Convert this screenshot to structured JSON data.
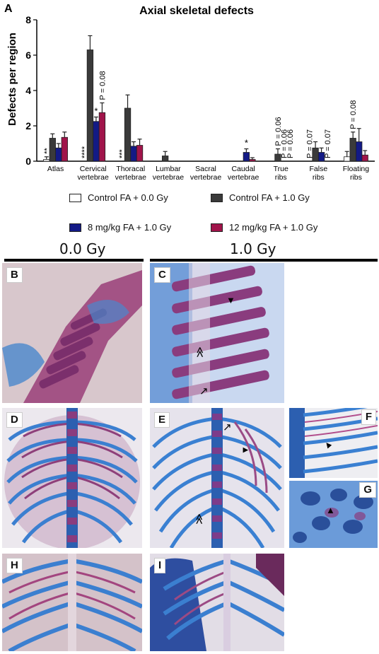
{
  "panel_a_label": "A",
  "chart_data": {
    "type": "bar",
    "title": "Axial skeletal defects",
    "ylabel": "Defects per region",
    "ylim": [
      0,
      8
    ],
    "yticks": [
      0,
      2,
      4,
      6,
      8
    ],
    "categories": [
      "Atlas",
      "Cervical\nvertebrae",
      "Thoracal\nvertebrae",
      "Lumbar\nvertebrae",
      "Sacral\nvertebrae",
      "Caudal\nvertebrae",
      "True\nribs",
      "False\nribs",
      "Floating\nribs"
    ],
    "series": [
      {
        "name": "Control FA + 0.0 Gy",
        "color": "#ffffff",
        "values": [
          0.1,
          0,
          0,
          0,
          0,
          0,
          0,
          0,
          0.25
        ],
        "errors": [
          0.15,
          0,
          0,
          0,
          0,
          0,
          0,
          0,
          0.3
        ]
      },
      {
        "name": "Control FA + 1.0 Gy",
        "color": "#3a3a3a",
        "values": [
          1.3,
          6.3,
          3.0,
          0.3,
          0,
          0,
          0.4,
          0.75,
          1.3
        ],
        "errors": [
          0.25,
          0.8,
          0.75,
          0.25,
          0,
          0,
          0.3,
          0.35,
          0.35
        ]
      },
      {
        "name": "8 mg/kg FA + 1.0 Gy",
        "color": "#131a86",
        "values": [
          0.75,
          2.25,
          0.85,
          0,
          0,
          0.5,
          0,
          0.5,
          1.1
        ],
        "errors": [
          0.25,
          0.25,
          0.25,
          0,
          0,
          0.2,
          0,
          0.25,
          0.75
        ]
      },
      {
        "name": "12 mg/kg FA + 1.0 Gy",
        "color": "#a0144a",
        "values": [
          1.35,
          2.75,
          0.9,
          0,
          0,
          0.1,
          0,
          0,
          0.35
        ],
        "errors": [
          0.3,
          0.55,
          0.35,
          0,
          0,
          0.1,
          0,
          0,
          0.25
        ]
      }
    ],
    "annotations": [
      {
        "category": 0,
        "series": 0,
        "text": "**",
        "vertical": true
      },
      {
        "category": 1,
        "series": 0,
        "text": "****",
        "vertical": true
      },
      {
        "category": 1,
        "series": 2,
        "text": "*",
        "vertical": false
      },
      {
        "category": 1,
        "series": 3,
        "text": "P = 0.08",
        "vertical": true
      },
      {
        "category": 2,
        "series": 0,
        "text": "***",
        "vertical": true
      },
      {
        "category": 5,
        "series": 2,
        "text": "*",
        "vertical": false
      },
      {
        "category": 6,
        "series": 1,
        "text": "P = 0.06",
        "vertical": true
      },
      {
        "category": 6,
        "series": 2,
        "text": "P = 0.06",
        "vertical": true
      },
      {
        "category": 6,
        "series": 3,
        "text": "P = 0.06",
        "vertical": true
      },
      {
        "category": 7,
        "series": 0,
        "text": "P = 0.07",
        "vertical": true
      },
      {
        "category": 7,
        "series": 3,
        "text": "P = 0.07",
        "vertical": true
      },
      {
        "category": 8,
        "series": 1,
        "text": "P = 0.08",
        "vertical": true
      }
    ],
    "legend": [
      "Control FA + 0.0 Gy",
      "Control FA + 1.0 Gy",
      "8 mg/kg FA + 1.0 Gy",
      "12 mg/kg FA + 1.0 Gy"
    ]
  },
  "dose_labels": {
    "left": "0.0 Gy",
    "right": "1.0 Gy"
  },
  "panels": {
    "B": {
      "letter": "B"
    },
    "C": {
      "letter": "C",
      "markers": [
        "▼",
        "≪",
        "↗"
      ]
    },
    "D": {
      "letter": "D"
    },
    "E": {
      "letter": "E",
      "markers": [
        "↗",
        "▼",
        "≪"
      ]
    },
    "F": {
      "letter": "F",
      "markers": [
        "▲"
      ]
    },
    "G": {
      "letter": "G",
      "markers": [
        "▲"
      ]
    },
    "H": {
      "letter": "H"
    },
    "I": {
      "letter": "I"
    }
  },
  "colors": {
    "cartilage_blue": "#3f86d3",
    "bone_purple": "#8a3f7a",
    "tissue_pink": "#c48aa8",
    "background_light": "#e9e6ef"
  }
}
